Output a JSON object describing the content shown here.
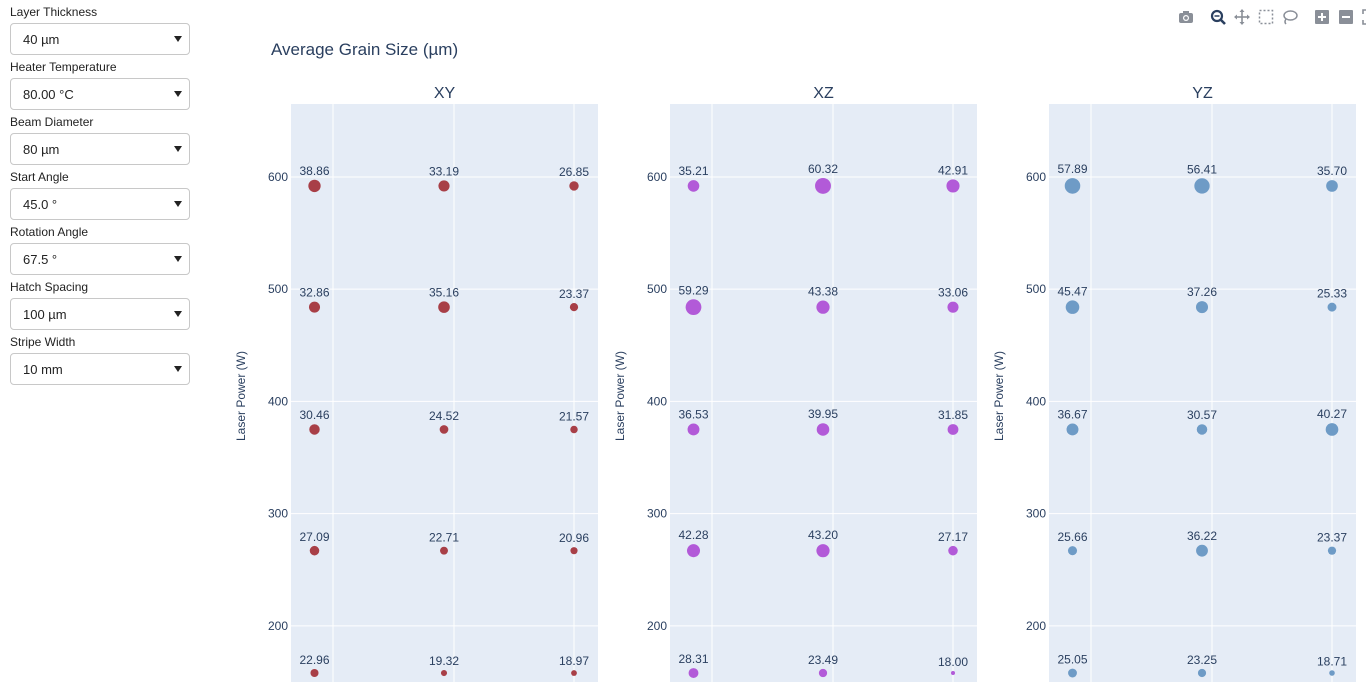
{
  "controls": [
    {
      "label": "Layer Thickness",
      "value": "40 µm"
    },
    {
      "label": "Heater Temperature",
      "value": "80.00 °C"
    },
    {
      "label": "Beam Diameter",
      "value": "80 µm"
    },
    {
      "label": "Start Angle",
      "value": "45.0 °"
    },
    {
      "label": "Rotation Angle",
      "value": "67.5 °"
    },
    {
      "label": "Hatch Spacing",
      "value": "100 µm"
    },
    {
      "label": "Stripe Width",
      "value": "10 mm"
    }
  ],
  "modebar": [
    "camera-icon",
    "zoom-icon",
    "pan-icon",
    "box-select-icon",
    "lasso-icon",
    "zoom-in-icon",
    "zoom-out-icon",
    "autoscale-icon"
  ],
  "chart_data": {
    "type": "scatter",
    "subtype": "bubble",
    "title": "Average Grain Size (µm)",
    "ylabel": "Laser Power (W)",
    "y_ticks": [
      200,
      300,
      400,
      500,
      600
    ],
    "ylim": [
      150,
      665
    ],
    "y_levels": [
      592,
      484,
      375,
      267,
      158
    ],
    "x_columns": 3,
    "grid": true,
    "plot_bg": "#e5ecf6",
    "panels": [
      {
        "title": "XY",
        "color": "#a83f47",
        "values": [
          [
            38.86,
            33.19,
            26.85
          ],
          [
            32.86,
            35.16,
            23.37
          ],
          [
            30.46,
            24.52,
            21.57
          ],
          [
            27.09,
            22.71,
            20.96
          ],
          [
            22.96,
            19.32,
            18.97
          ]
        ]
      },
      {
        "title": "XZ",
        "color": "#b25ad8",
        "values": [
          [
            35.21,
            60.32,
            42.91
          ],
          [
            59.29,
            43.38,
            33.06
          ],
          [
            36.53,
            39.95,
            31.85
          ],
          [
            42.28,
            43.2,
            27.17
          ],
          [
            28.31,
            23.49,
            18.0
          ]
        ]
      },
      {
        "title": "YZ",
        "color": "#6e9bc6",
        "values": [
          [
            57.89,
            56.41,
            35.7
          ],
          [
            45.47,
            37.26,
            25.33
          ],
          [
            36.67,
            30.57,
            40.27
          ],
          [
            25.66,
            36.22,
            23.37
          ],
          [
            25.05,
            23.25,
            18.71
          ]
        ]
      }
    ]
  }
}
